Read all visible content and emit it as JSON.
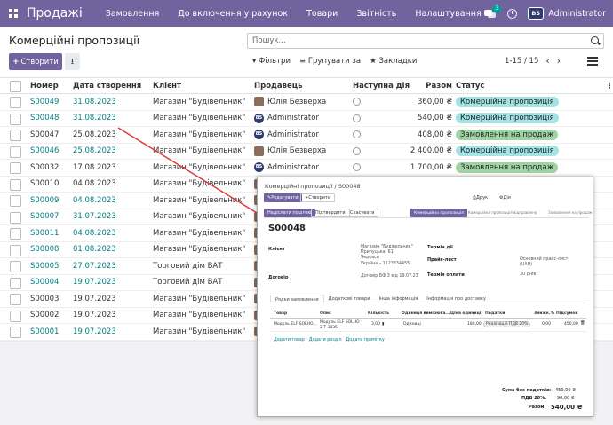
{
  "navbar": {
    "brand": "Продажі",
    "items": [
      "Замовлення",
      "До включення у рахунок",
      "Товари",
      "Звітність",
      "Налаштування"
    ],
    "chat_count": "3",
    "company_logo": "BS",
    "user": "Administrator"
  },
  "control": {
    "title": "Комерційні пропозиції",
    "search_placeholder": "Пошук...",
    "create_label": "Створити",
    "filters_label": "Фільтри",
    "group_label": "Групувати за",
    "favorites_label": "Закладки",
    "pager": "1-15 / 15"
  },
  "table": {
    "headers": {
      "number": "Номер",
      "date": "Дата створення",
      "client": "Клієнт",
      "seller": "Продавець",
      "activity": "Наступна дія",
      "amount": "Разом",
      "status": "Статус"
    },
    "rows": [
      {
        "number": "S00049",
        "date": "31.08.2023",
        "client": "Магазин \"Будівельник\"",
        "seller": "Юлія Безверха",
        "seller_avatar": "photo",
        "amount": "360,00 ₴",
        "status": "Комерційна пропозиція",
        "status_type": "quote",
        "link": true
      },
      {
        "number": "S00048",
        "date": "31.08.2023",
        "client": "Магазин \"Будівельник\"",
        "seller": "Administrator",
        "seller_avatar": "logo",
        "amount": "540,00 ₴",
        "status": "Комерційна пропозиція",
        "status_type": "quote",
        "link": true
      },
      {
        "number": "S00047",
        "date": "25.08.2023",
        "client": "Магазин \"Будівельник\"",
        "seller": "Administrator",
        "seller_avatar": "logo",
        "amount": "408,00 ₴",
        "status": "Замовлення на продаж",
        "status_type": "order",
        "link": false
      },
      {
        "number": "S00046",
        "date": "25.08.2023",
        "client": "Магазин \"Будівельник\"",
        "seller": "Юлія Безверха",
        "seller_avatar": "photo",
        "amount": "2 400,00 ₴",
        "status": "Комерційна пропозиція",
        "status_type": "quote",
        "link": true
      },
      {
        "number": "S00032",
        "date": "17.08.2023",
        "client": "Магазин \"Будівельник\"",
        "seller": "Administrator",
        "seller_avatar": "logo",
        "amount": "1 700,00 ₴",
        "status": "Замовлення на продаж",
        "status_type": "order",
        "link": false
      },
      {
        "number": "S00010",
        "date": "04.08.2023",
        "client": "Магазин \"Будівельник\"",
        "seller": "",
        "seller_avatar": "",
        "amount": "",
        "status": "",
        "status_type": "",
        "link": false
      },
      {
        "number": "S00009",
        "date": "04.08.2023",
        "client": "Магазин \"Будівельник\"",
        "seller": "",
        "seller_avatar": "",
        "amount": "",
        "status": "",
        "status_type": "",
        "link": true
      },
      {
        "number": "S00007",
        "date": "31.07.2023",
        "client": "Магазин \"Будівельник\"",
        "seller": "",
        "seller_avatar": "",
        "amount": "",
        "status": "",
        "status_type": "",
        "link": true
      },
      {
        "number": "S00011",
        "date": "04.08.2023",
        "client": "Магазин \"Будівельник\"",
        "seller": "",
        "seller_avatar": "",
        "amount": "",
        "status": "",
        "status_type": "",
        "link": true
      },
      {
        "number": "S00008",
        "date": "01.08.2023",
        "client": "Магазин \"Будівельник\"",
        "seller": "",
        "seller_avatar": "",
        "amount": "",
        "status": "",
        "status_type": "",
        "link": true
      },
      {
        "number": "S00005",
        "date": "27.07.2023",
        "client": "Торговий дім ВАТ",
        "seller": "",
        "seller_avatar": "",
        "amount": "",
        "status": "",
        "status_type": "",
        "link": true
      },
      {
        "number": "S00004",
        "date": "19.07.2023",
        "client": "Торговий дім ВАТ",
        "seller": "",
        "seller_avatar": "",
        "amount": "",
        "status": "",
        "status_type": "",
        "link": true
      },
      {
        "number": "S00003",
        "date": "19.07.2023",
        "client": "Магазин \"Будівельник\"",
        "seller": "",
        "seller_avatar": "",
        "amount": "",
        "status": "",
        "status_type": "",
        "link": false
      },
      {
        "number": "S00002",
        "date": "19.07.2023",
        "client": "Магазин \"Будівельник\"",
        "seller": "",
        "seller_avatar": "",
        "amount": "",
        "status": "",
        "status_type": "",
        "link": false
      },
      {
        "number": "S00001",
        "date": "19.07.2023",
        "client": "Магазин \"Будівельник\"",
        "seller": "",
        "seller_avatar": "",
        "amount": "",
        "status": "",
        "status_type": "",
        "link": true
      }
    ]
  },
  "overlay": {
    "breadcrumb": "Комерційні пропозиції / S00048",
    "edit": "Редагувати",
    "create": "Створити",
    "print": "Друк",
    "action": "Дія",
    "btn_send": "Надіслати поштою",
    "btn_confirm": "Підтвердити",
    "btn_cancel": "Скасувати",
    "stage_active": "Комерційна пропозиція",
    "stage_2": "Комерційна пропозиція відправлена",
    "stage_3": "Замовлення на продаж",
    "title": "S00048",
    "client_label": "Клієнт",
    "client_lines": [
      "Магазин \"Будівельник\"",
      "Прилуцька, 61",
      "Черкаси",
      "Україна – 1123334455"
    ],
    "contract_label": "Договір",
    "contract_value": "Договір БФ 3 від 19.07.23",
    "valid_label": "Термін дії",
    "pricelist_label": "Прайс-лист",
    "pricelist_value": "Основний прайс-лист (UAH)",
    "terms_label": "Термін оплати",
    "terms_value": "30 днів",
    "tabs": [
      "Рядки замовлення",
      "Додаткові товари",
      "Інша інформація",
      "Інформація про доставку"
    ],
    "grid_headers": [
      "Товар",
      "Опис",
      "Кількість",
      "Одиниця вимірюва...",
      "Ціна одиниці",
      "Податки",
      "Знижк.%",
      "Підсумок"
    ],
    "grid_row": {
      "product": "Модуль ELF SOLHO...",
      "desc": "Модуль ELF SOLHO 2 T 3835",
      "qty": "3,00",
      "uom": "Одиниці",
      "price": "180,00",
      "tax": "Реалізація ПДВ 20%",
      "disc": "0,00",
      "subtotal": "450,00"
    },
    "add_links": [
      "Додати товар",
      "Додати розділ",
      "Додати примітку"
    ],
    "untaxed_label": "Сума без податків:",
    "untaxed_value": "450,00 ₴",
    "vat_label": "ПДВ 20%:",
    "vat_value": "90,00 ₴",
    "total_label": "Разом:",
    "total_value": "540,00 ₴"
  }
}
